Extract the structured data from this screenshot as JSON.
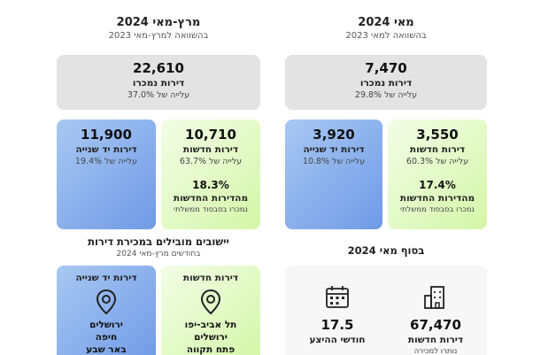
{
  "left_column": {
    "title": "מרץ-מאי 2024",
    "subtitle": "בהשוואה למרץ-מאי 2023",
    "total": {
      "value": "22,610",
      "label": "דירות נמכרו",
      "change": "עלייה של 37.0%"
    },
    "second_hand": {
      "value": "11,900",
      "label": "דירות יד שנייה",
      "change": "עלייה של 19.4%"
    },
    "new_homes": {
      "value": "10,710",
      "label": "דירות חדשות",
      "change": "עלייה של 63.7%",
      "subsidy_pct": "18.3%",
      "subsidy_label": "מהדירות החדשות",
      "subsidy_note": "נמכרו בסבסוד ממשלתי"
    }
  },
  "right_column": {
    "title": "מאי 2024",
    "subtitle": "בהשוואה למאי 2023",
    "total": {
      "value": "7,470",
      "label": "דירות נמכרו",
      "change": "עלייה של 29.8%"
    },
    "second_hand": {
      "value": "3,920",
      "label": "דירות יד שנייה",
      "change": "עלייה של 10.8%"
    },
    "new_homes": {
      "value": "3,550",
      "label": "דירות חדשות",
      "change": "עלייה של 60.3%",
      "subsidy_pct": "17.4%",
      "subsidy_label": "מהדירות החדשות",
      "subsidy_note": "נמכרו בסבסוד ממשלתי"
    }
  },
  "leading_cities": {
    "title": "יישובים מובילים במכירת דירות",
    "subtitle": "בחודשים מרץ-מאי 2024",
    "second_hand": {
      "label": "דירות יד שנייה",
      "cities": [
        "ירושלים",
        "חיפה",
        "באר שבע"
      ]
    },
    "new_homes": {
      "label": "דירות חדשות",
      "cities": [
        "תל אביב-יפו",
        "ירושלים",
        "פתח תקווה"
      ]
    }
  },
  "end_of_may": {
    "title": "בסוף מאי 2024",
    "inventory": {
      "value": "67,470",
      "label": "דירות חדשות",
      "sub": "נותרו למכירה"
    },
    "months": {
      "value": "17.5",
      "label": "חודשי ההיצע"
    }
  },
  "colors": {
    "grey": "#e3e3e3",
    "blue": "#6f9ae6",
    "green": "#d4f6a8"
  }
}
